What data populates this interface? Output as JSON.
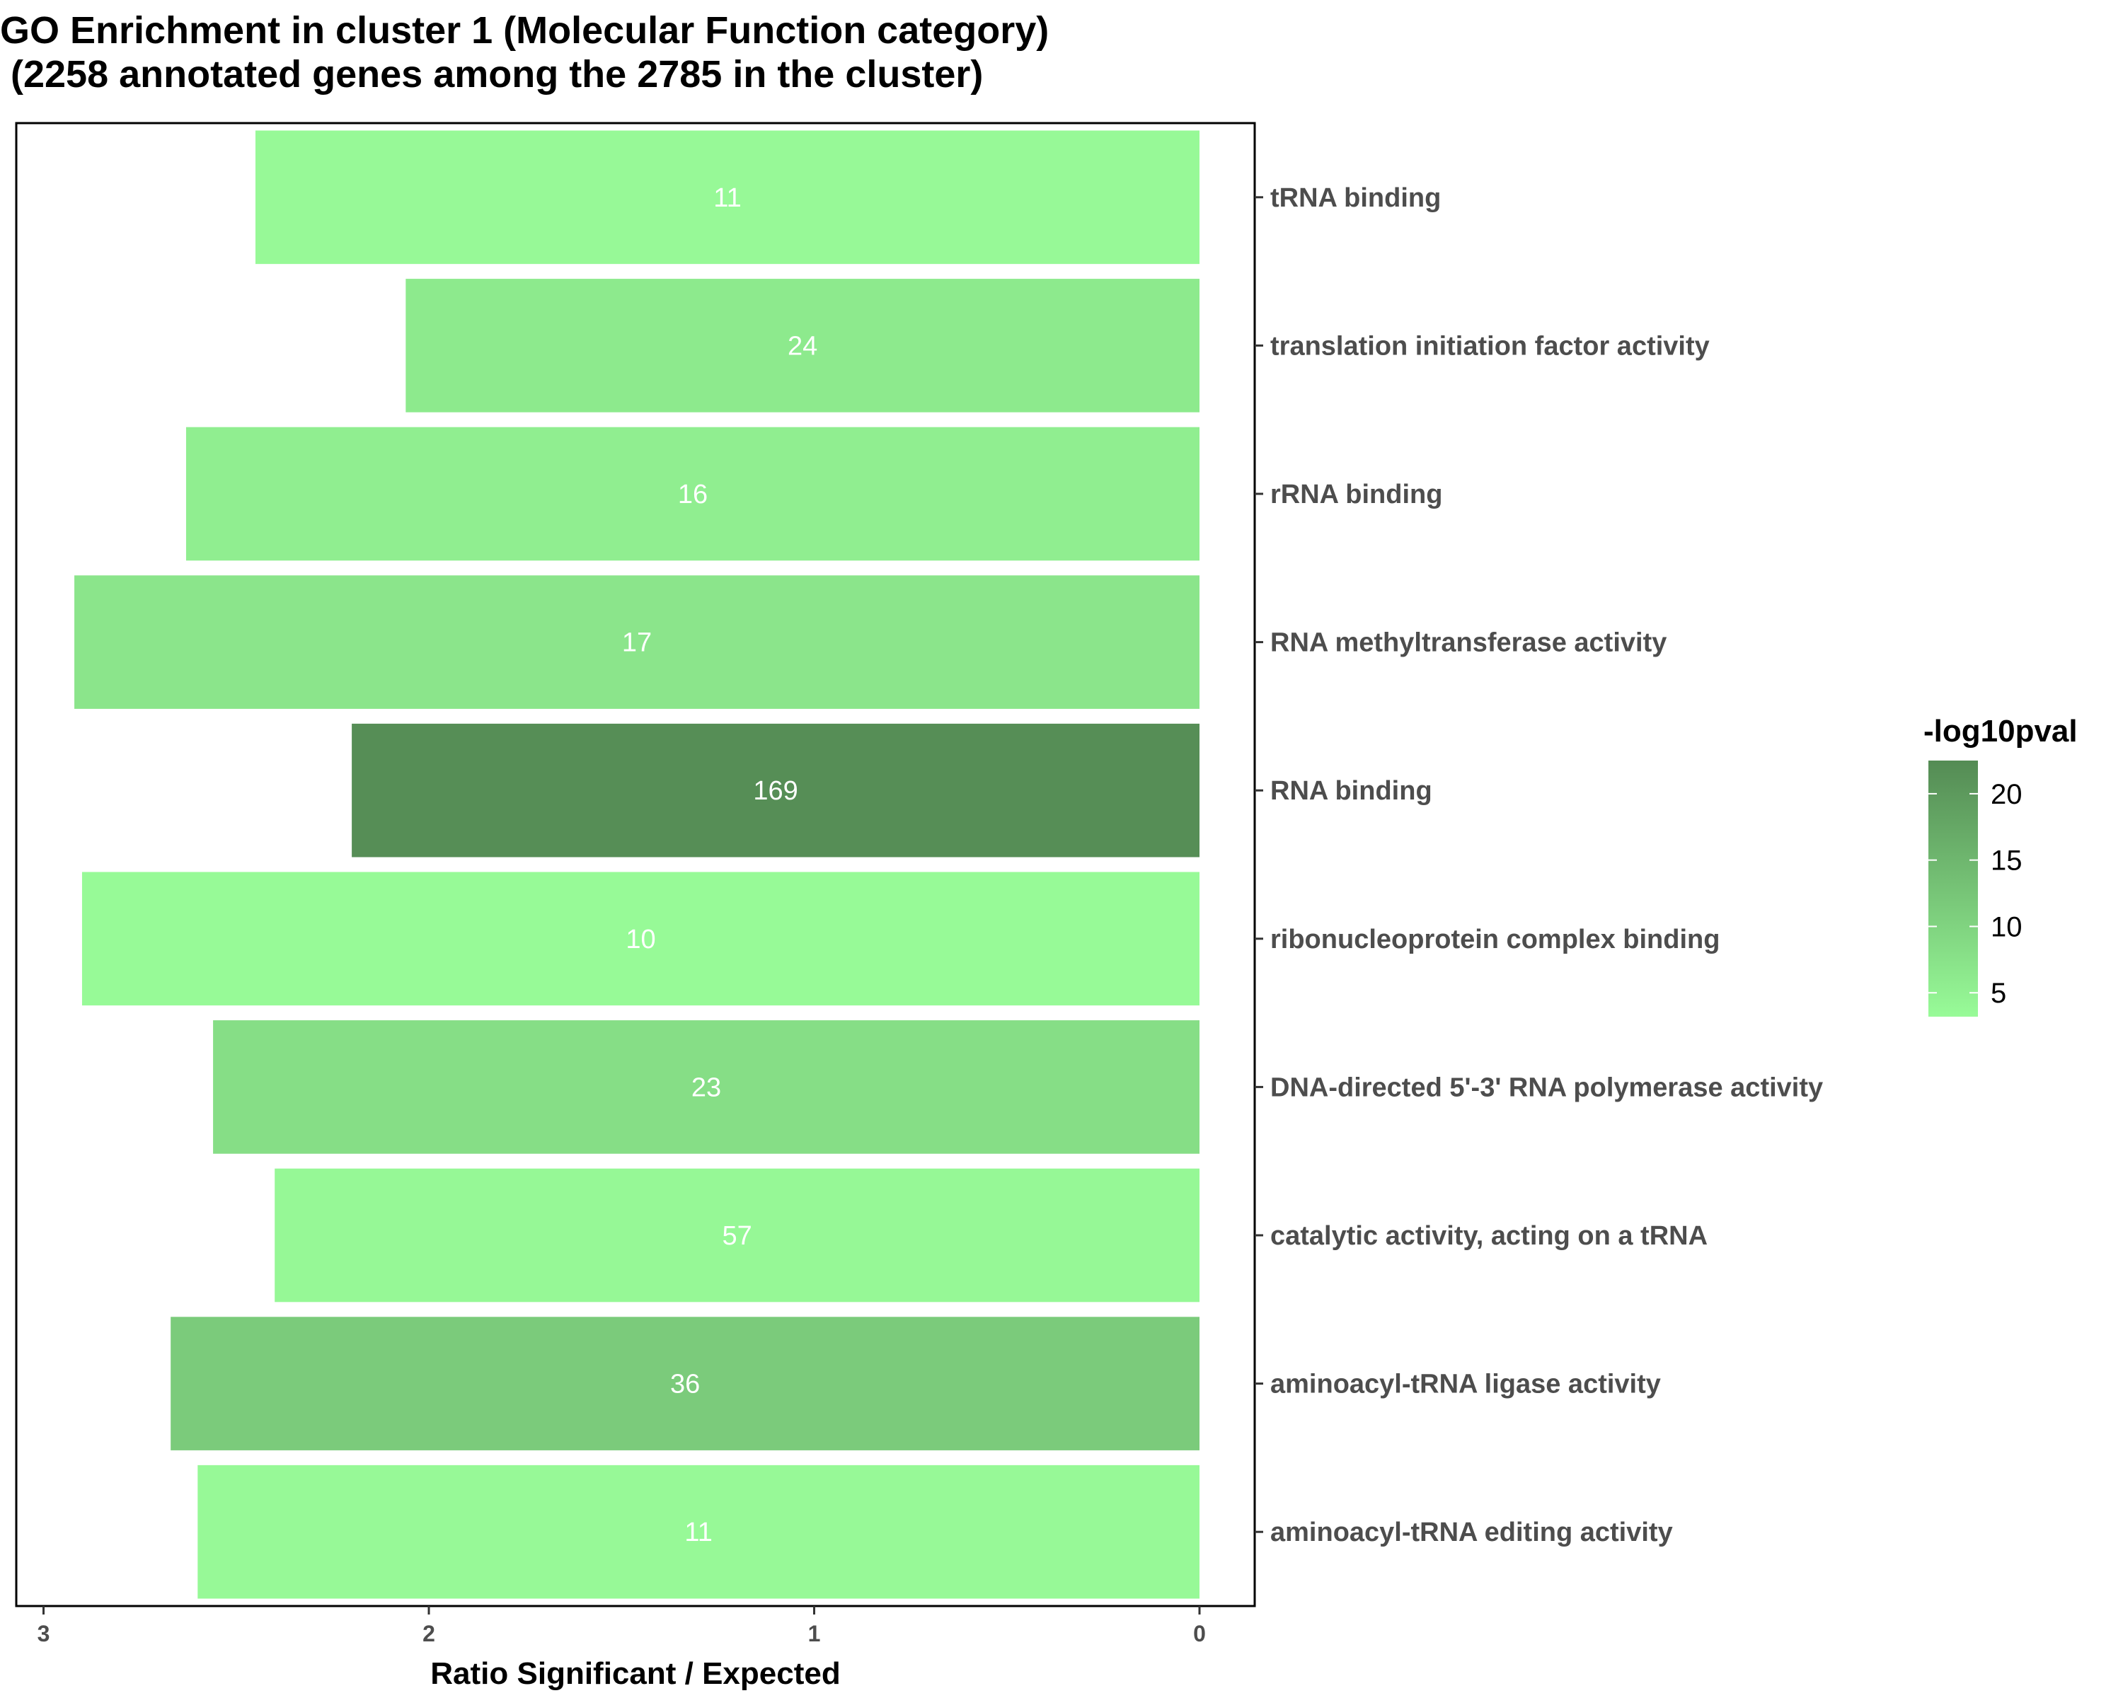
{
  "chart_data": {
    "type": "bar",
    "orientation": "horizontal",
    "title_line1": "GO Enrichment in cluster 1 (Molecular Function category)",
    "title_line2": " (2258 annotated genes among the 2785 in the cluster)",
    "xlabel": "Ratio Significant / Expected",
    "ylabel": "",
    "xlim": [
      3.08,
      -0.15
    ],
    "x_reversed": true,
    "x_ticks": [
      "3",
      "2",
      "1",
      "0"
    ],
    "categories": [
      "tRNA binding",
      "translation initiation factor activity",
      "rRNA binding",
      "RNA methyltransferase activity",
      "RNA binding",
      "ribonucleoprotein complex binding",
      "DNA-directed 5'-3' RNA polymerase activity",
      "catalytic activity, acting on a tRNA",
      "aminoacyl-tRNA ligase activity",
      "aminoacyl-tRNA editing activity"
    ],
    "values": [
      2.45,
      2.06,
      2.63,
      2.92,
      2.2,
      2.9,
      2.56,
      2.4,
      2.67,
      2.6
    ],
    "bar_labels": [
      "11",
      "24",
      "16",
      "17",
      "169",
      "10",
      "23",
      "57",
      "36",
      "11"
    ],
    "color_values": [
      3.6,
      6.2,
      5.5,
      7.0,
      22.0,
      3.4,
      8.2,
      3.7,
      11.5,
      3.5
    ],
    "legend": {
      "title": "-log10pval",
      "placement": "right",
      "range": [
        3.2,
        22.5
      ],
      "ticks": [
        "5",
        "10",
        "15",
        "20"
      ],
      "color_low": "#98fb98",
      "color_high": "#548b54"
    },
    "grid": false
  }
}
